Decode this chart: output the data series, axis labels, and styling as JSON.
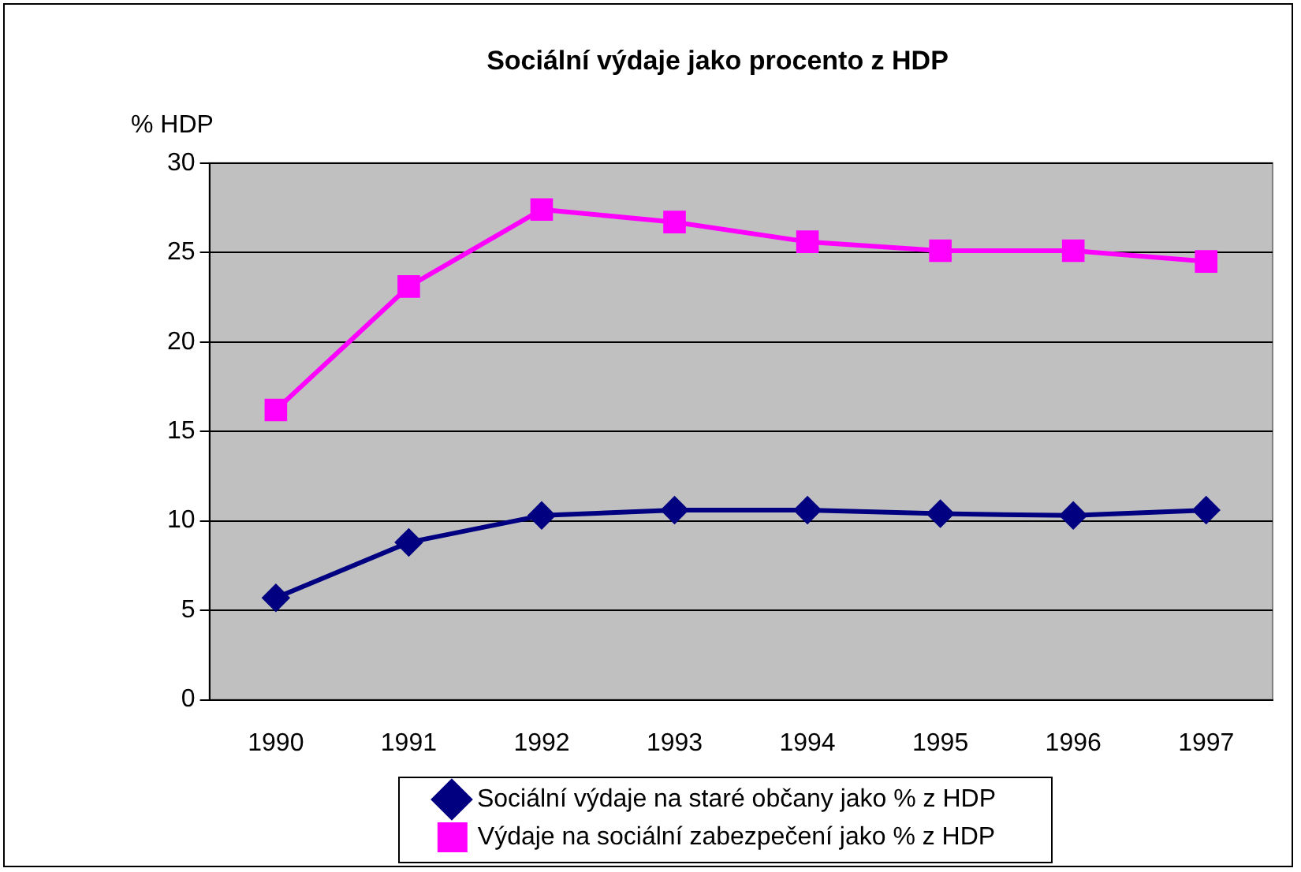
{
  "chart_data": {
    "type": "line",
    "title": "Sociální výdaje jako procento z HDP",
    "ylabel": "% HDP",
    "categories": [
      "1990",
      "1991",
      "1992",
      "1993",
      "1994",
      "1995",
      "1996",
      "1997"
    ],
    "series": [
      {
        "name": "Sociální výdaje na staré občany jako % z HDP",
        "color": "#000080",
        "marker": "diamond",
        "values": [
          5.7,
          8.8,
          10.3,
          10.6,
          10.6,
          10.4,
          10.3,
          10.6
        ]
      },
      {
        "name": "Výdaje na sociální zabezpečení jako % z HDP",
        "color": "#ff00ff",
        "marker": "square",
        "values": [
          16.2,
          23.1,
          27.4,
          26.7,
          25.6,
          25.1,
          25.1,
          24.5
        ]
      }
    ],
    "ylim": [
      0,
      30
    ],
    "yticks": [
      0,
      5,
      10,
      15,
      20,
      25,
      30
    ],
    "grid": "y",
    "legend": "bottom",
    "line_style": "solid"
  }
}
